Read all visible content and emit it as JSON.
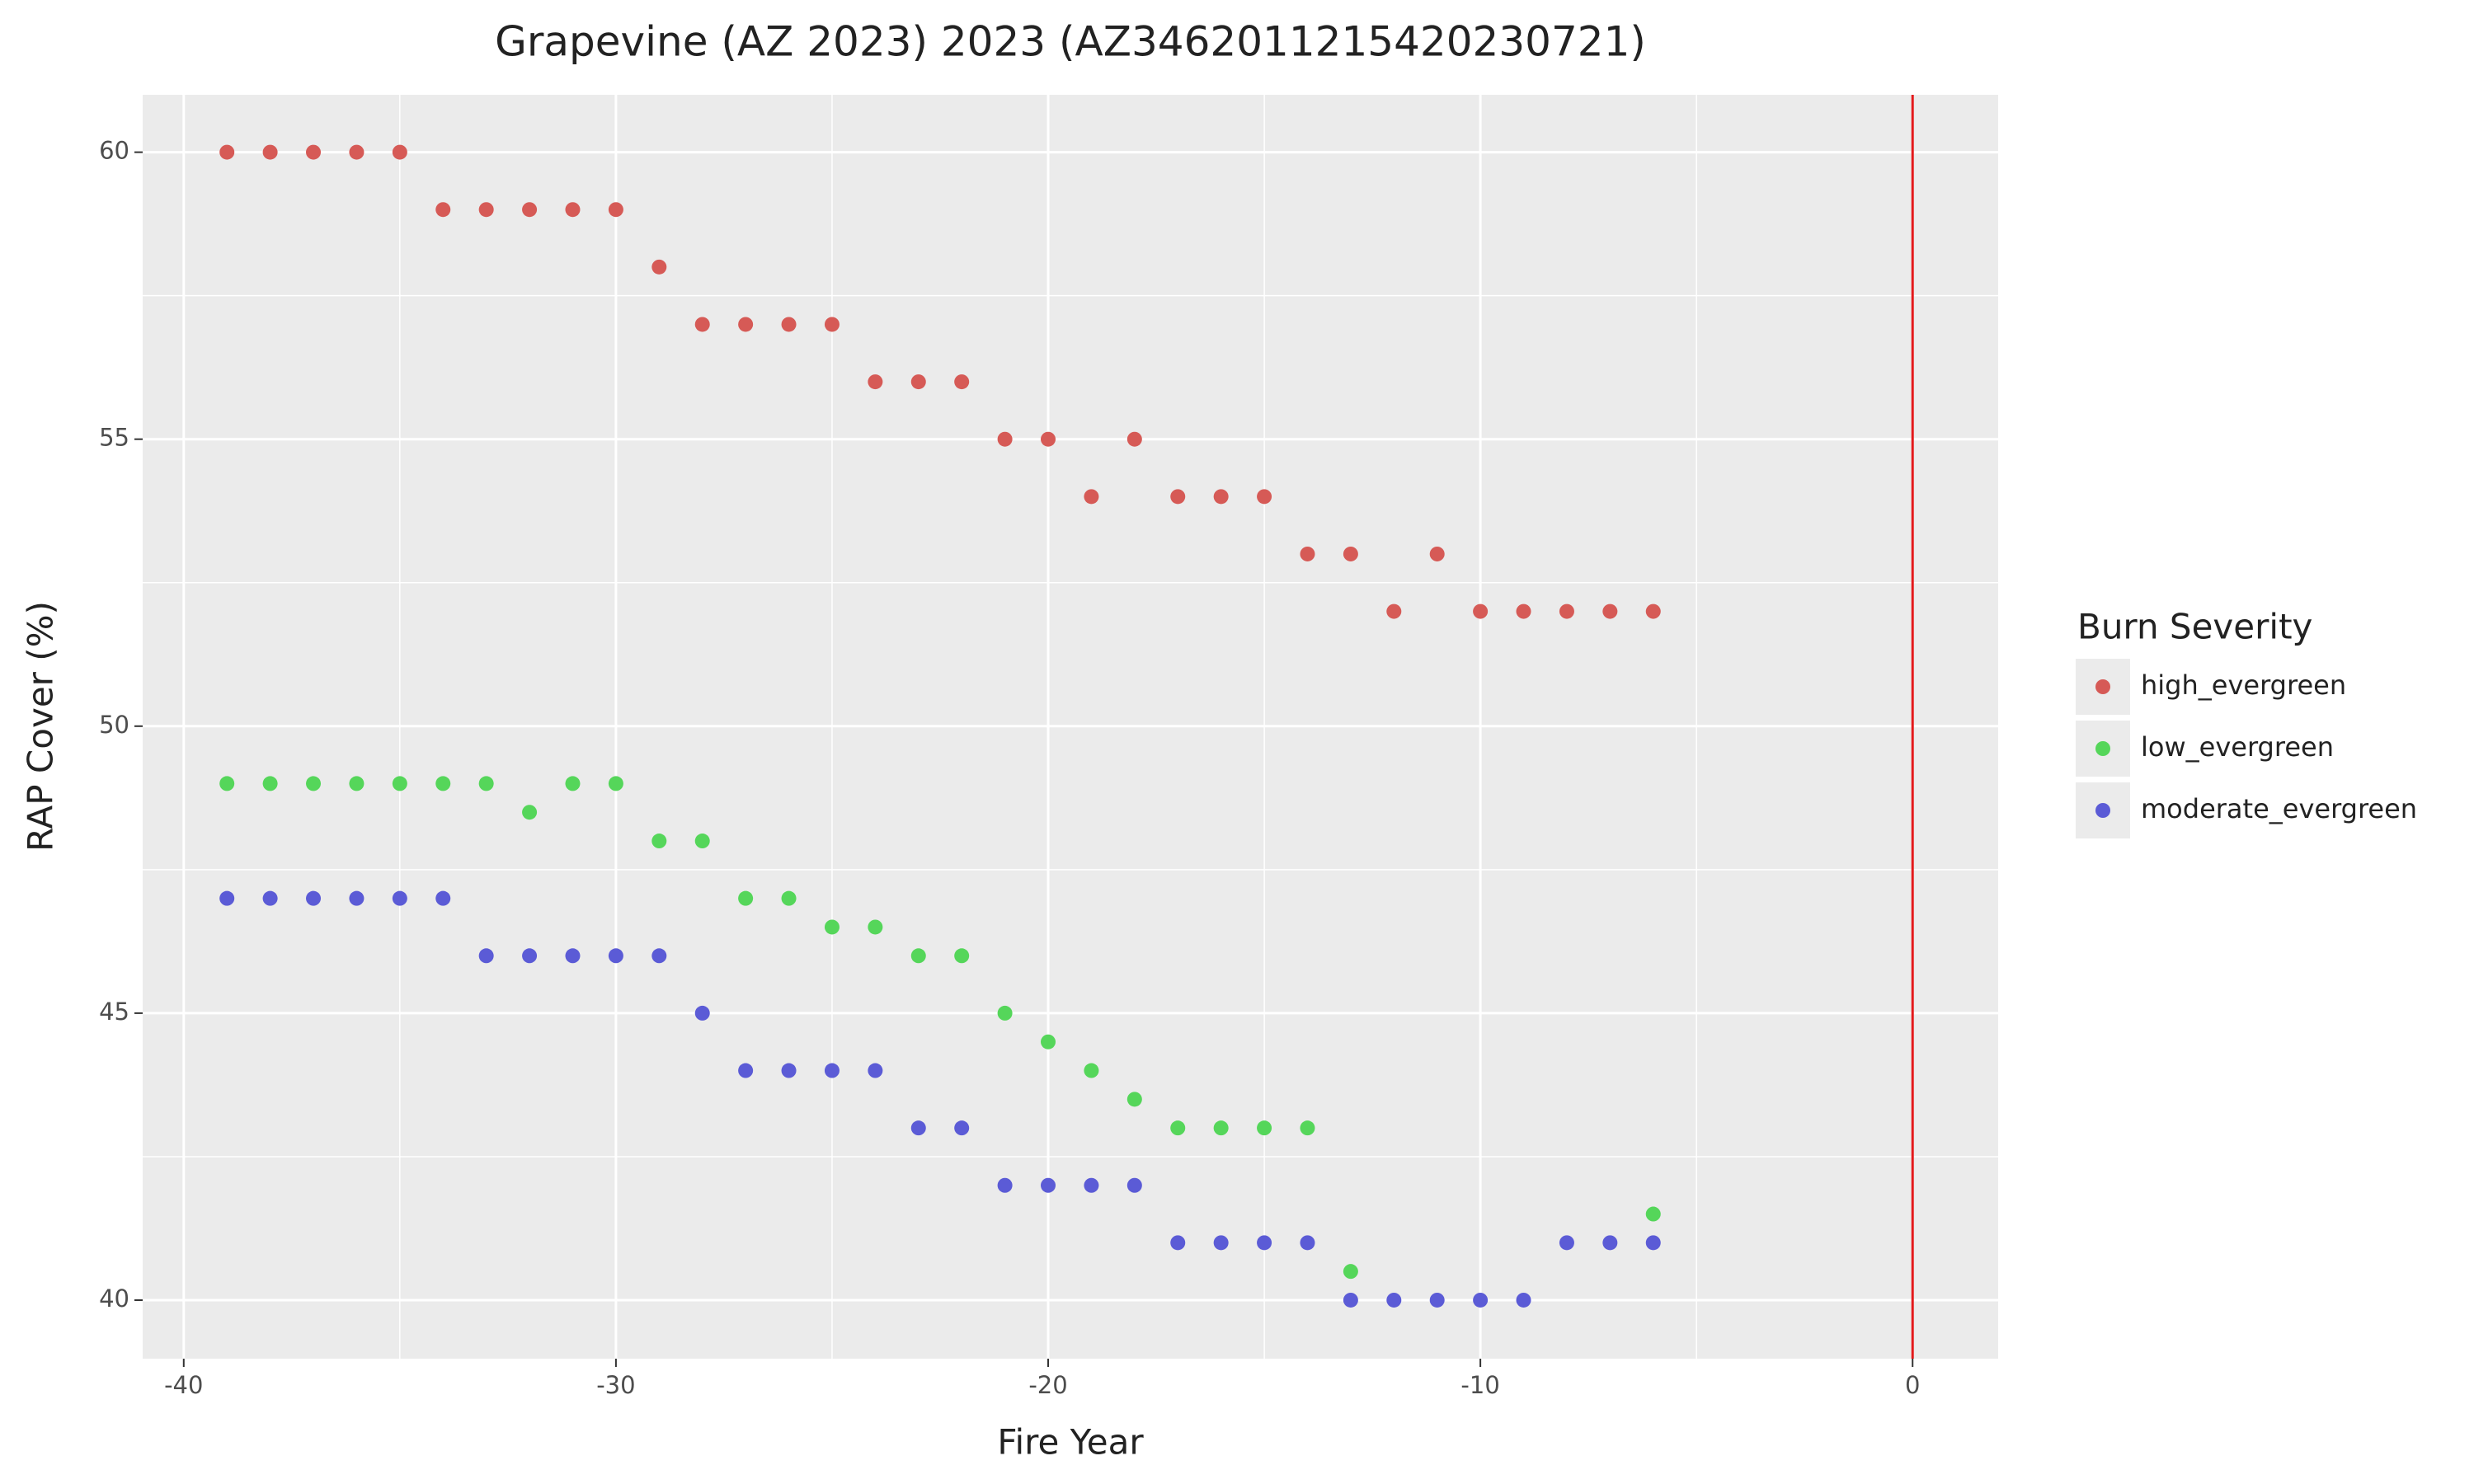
{
  "chart_data": {
    "type": "scatter",
    "title": "Grapevine (AZ 2023) 2023 (AZ3462011215420230721)",
    "x_label": "Fire Year",
    "y_label": "RAP Cover (%)",
    "legend_title": "Burn Severity",
    "legend_position": "right",
    "grid": true,
    "xlim": [
      -40.95,
      1.98
    ],
    "ylim": [
      38.98,
      61
    ],
    "xticks": [
      -40,
      -30,
      -20,
      -10,
      0
    ],
    "yticks": [
      40,
      45,
      50,
      55,
      60
    ],
    "xminorticks": [
      -35,
      -25,
      -15,
      -5
    ],
    "yminorticks": [
      42.5,
      47.5,
      52.5,
      57.5
    ],
    "vline": {
      "x": 0,
      "color": "#e31a1c"
    },
    "series": [
      {
        "name": "high_evergreen",
        "color": "#d65a56",
        "x": [
          -39,
          -38,
          -37,
          -36,
          -35,
          -34,
          -33,
          -32,
          -31,
          -30,
          -29,
          -28,
          -27,
          -26,
          -25,
          -24,
          -23,
          -22,
          -21,
          -20,
          -19,
          -18,
          -17,
          -16,
          -15,
          -14,
          -13,
          -12,
          -11,
          -10,
          -9,
          -8,
          -7,
          -6
        ],
        "values": [
          60,
          60,
          60,
          60,
          60,
          59,
          59,
          59,
          59,
          59,
          58,
          57,
          57,
          57,
          57,
          56,
          56,
          56,
          55,
          55,
          54,
          55,
          54,
          54,
          54,
          53,
          53,
          52,
          53,
          52,
          52,
          52,
          52,
          52
        ]
      },
      {
        "name": "low_evergreen",
        "color": "#55d65a",
        "x": [
          -39,
          -38,
          -37,
          -36,
          -35,
          -34,
          -33,
          -32,
          -31,
          -30,
          -29,
          -28,
          -27,
          -26,
          -25,
          -24,
          -23,
          -22,
          -21,
          -20,
          -19,
          -18,
          -17,
          -16,
          -15,
          -14,
          -13,
          -6
        ],
        "values": [
          49,
          49,
          49,
          49,
          49,
          49,
          49,
          48.5,
          49,
          49,
          48,
          48,
          47,
          47,
          46.5,
          46.5,
          46,
          46,
          45,
          44.5,
          44,
          43.5,
          43,
          43,
          43,
          43,
          40.5,
          41.5
        ]
      },
      {
        "name": "moderate_evergreen",
        "color": "#5b5bd6",
        "x": [
          -39,
          -38,
          -37,
          -36,
          -35,
          -34,
          -33,
          -32,
          -31,
          -30,
          -29,
          -28,
          -27,
          -26,
          -25,
          -24,
          -23,
          -22,
          -21,
          -20,
          -19,
          -18,
          -17,
          -16,
          -15,
          -14,
          -13,
          -12,
          -11,
          -10,
          -9,
          -8,
          -7,
          -6
        ],
        "values": [
          47,
          47,
          47,
          47,
          47,
          47,
          46,
          46,
          46,
          46,
          46,
          45,
          44,
          44,
          44,
          44,
          43,
          43,
          42,
          42,
          42,
          42,
          41,
          41,
          41,
          41,
          40,
          40,
          40,
          40,
          40,
          41,
          41,
          41
        ]
      }
    ]
  }
}
